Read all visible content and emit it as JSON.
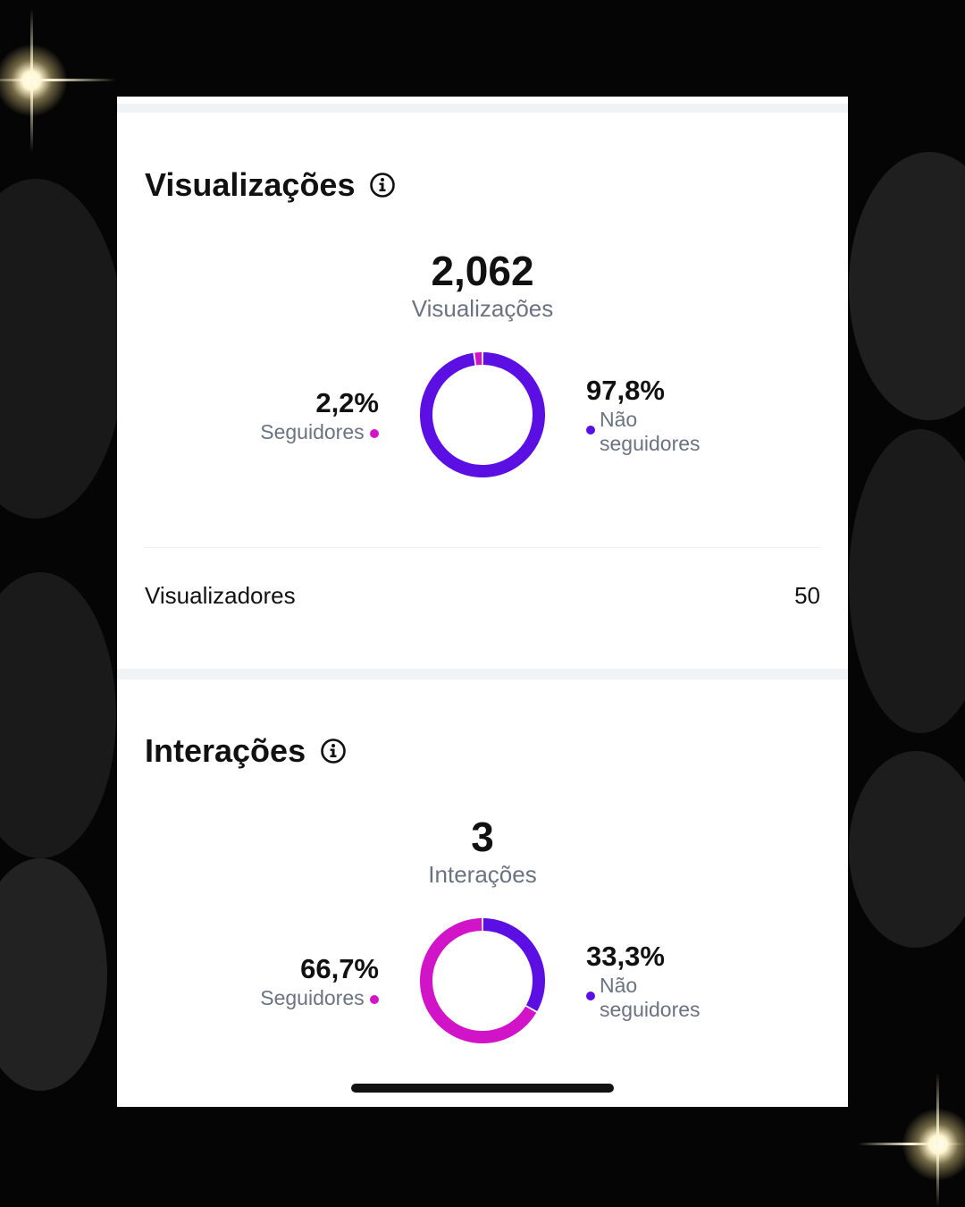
{
  "colors": {
    "followers": "#d214c8",
    "non_followers": "#5b0fe3",
    "text_primary": "#111111",
    "text_secondary": "#6b7280"
  },
  "views": {
    "title": "Visualizações",
    "total": "2,062",
    "total_label": "Visualizações",
    "followers": {
      "percent_text": "2,2%",
      "label": "Seguidores",
      "value": 2.2
    },
    "non_followers": {
      "percent_text": "97,8%",
      "label": "Não seguidores",
      "value": 97.8
    },
    "viewers_label": "Visualizadores",
    "viewers_value": "50"
  },
  "interactions": {
    "title": "Interações",
    "total": "3",
    "total_label": "Interações",
    "followers": {
      "percent_text": "66,7%",
      "label": "Seguidores",
      "value": 66.7
    },
    "non_followers": {
      "percent_text": "33,3%",
      "label": "Não seguidores",
      "value": 33.3
    }
  },
  "chart_data": [
    {
      "type": "pie",
      "categories": [
        "Seguidores",
        "Não seguidores"
      ],
      "values": [
        2.2,
        97.8
      ],
      "title": "Visualizações"
    },
    {
      "type": "pie",
      "categories": [
        "Seguidores",
        "Não seguidores"
      ],
      "values": [
        66.7,
        33.3
      ],
      "title": "Interações"
    }
  ]
}
